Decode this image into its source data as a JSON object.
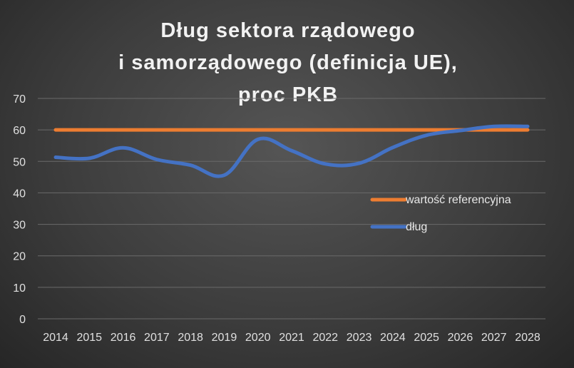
{
  "chart_data": {
    "type": "line",
    "title": [
      "Dług sektora rządowego",
      "i samorządowego (definicja UE),",
      "proc PKB"
    ],
    "xlabel": "",
    "ylabel": "",
    "categories": [
      "2014",
      "2015",
      "2016",
      "2017",
      "2018",
      "2019",
      "2020",
      "2021",
      "2022",
      "2023",
      "2024",
      "2025",
      "2026",
      "2027",
      "2028"
    ],
    "y_ticks": [
      "0",
      "10",
      "20",
      "30",
      "40",
      "50",
      "60",
      "70"
    ],
    "ylim": [
      0,
      70
    ],
    "grid": true,
    "legend_position": "right-middle",
    "series": [
      {
        "name": "wartość referencyjna",
        "color": "#ed7d31",
        "values": [
          60,
          60,
          60,
          60,
          60,
          60,
          60,
          60,
          60,
          60,
          60,
          60,
          60,
          60,
          60
        ]
      },
      {
        "name": "dług",
        "color": "#4472c4",
        "values": [
          51.3,
          51.0,
          54.3,
          50.6,
          48.8,
          45.6,
          57.0,
          53.4,
          49.2,
          49.4,
          54.4,
          58.3,
          59.8,
          61.1,
          61.1
        ]
      }
    ]
  }
}
